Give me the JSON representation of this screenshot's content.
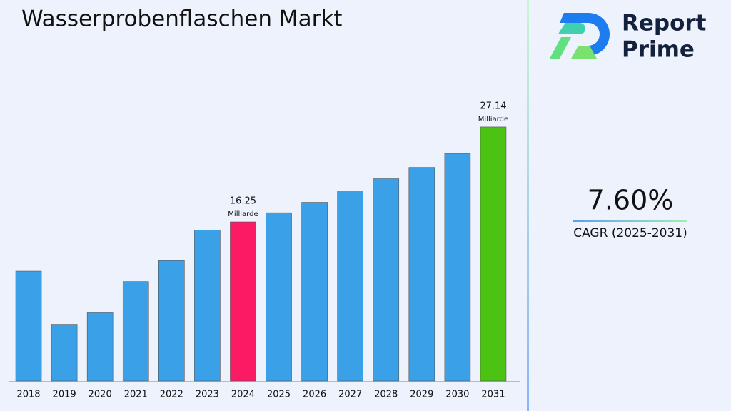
{
  "chart_data": {
    "type": "bar",
    "title": "Wasserprobenflaschen Markt",
    "categories": [
      "2018",
      "2019",
      "2020",
      "2021",
      "2022",
      "2023",
      "2024",
      "2025",
      "2026",
      "2027",
      "2028",
      "2029",
      "2030",
      "2031"
    ],
    "values": [
      10.6,
      4.5,
      5.9,
      9.4,
      11.8,
      15.3,
      16.25,
      17.3,
      18.5,
      19.8,
      21.2,
      22.5,
      24.1,
      27.14
    ],
    "value_labels": [
      null,
      null,
      null,
      null,
      null,
      null,
      "16.25",
      null,
      null,
      null,
      null,
      null,
      null,
      "27.14"
    ],
    "value_label_unit": "Milliarde",
    "colors": [
      "#3aa0e8",
      "#3aa0e8",
      "#3aa0e8",
      "#3aa0e8",
      "#3aa0e8",
      "#3aa0e8",
      "#fc1a65",
      "#3aa0e8",
      "#3aa0e8",
      "#3aa0e8",
      "#3aa0e8",
      "#3aa0e8",
      "#3aa0e8",
      "#4cc313"
    ],
    "ylim": [
      -2,
      30
    ]
  },
  "side_panel": {
    "brand_line1": "Report",
    "brand_line2": "Prime",
    "cagr_value": "7.60%",
    "cagr_label": "CAGR (2025-2031)"
  }
}
